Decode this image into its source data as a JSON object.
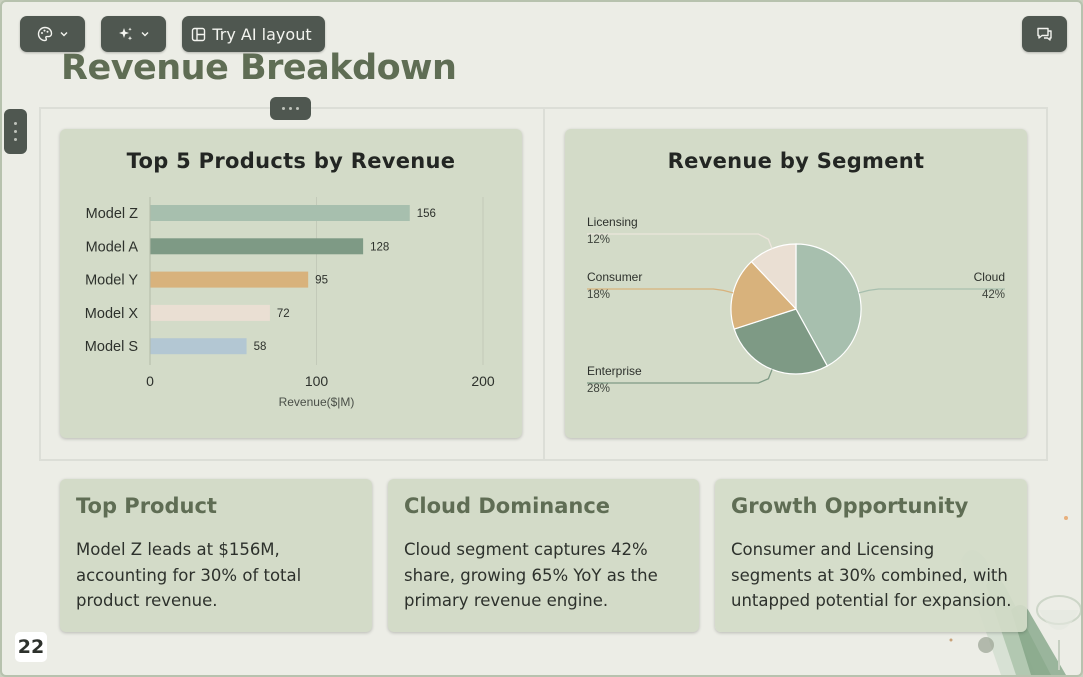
{
  "toolbar": {
    "theme_icon": "palette-icon",
    "ai_icon": "sparkle-icon",
    "ai_layout_icon": "layout-icon",
    "ai_layout_label": "Try AI layout",
    "comment_icon": "comment-icon"
  },
  "slide": {
    "title": "Revenue Breakdown",
    "page_number": "22"
  },
  "bar_chart": {
    "title": "Top 5 Products by Revenue"
  },
  "pie_chart": {
    "title": "Revenue by Segment"
  },
  "chart_data": [
    {
      "type": "bar",
      "orientation": "horizontal",
      "title": "Top 5 Products by Revenue",
      "categories": [
        "Model Z",
        "Model A",
        "Model Y",
        "Model X",
        "Model S"
      ],
      "values": [
        156,
        128,
        95,
        72,
        58
      ],
      "value_labels": [
        "156",
        "128",
        "95",
        "72",
        "58"
      ],
      "colors": [
        "#a7bfae",
        "#7e9a85",
        "#d8b27c",
        "#eadfd3",
        "#b3c7d3"
      ],
      "xlabel": "Revenue($|M)",
      "ylabel": "",
      "xlim": [
        0,
        200
      ],
      "xticks": [
        0,
        100,
        200
      ],
      "grid": "vertical"
    },
    {
      "type": "pie",
      "title": "Revenue by Segment",
      "slices": [
        {
          "label": "Cloud",
          "value": 42,
          "pct_label": "42%",
          "color": "#a7bfae"
        },
        {
          "label": "Enterprise",
          "value": 28,
          "pct_label": "28%",
          "color": "#7e9a85"
        },
        {
          "label": "Consumer",
          "value": 18,
          "pct_label": "18%",
          "color": "#d8b27c"
        },
        {
          "label": "Licensing",
          "value": 12,
          "pct_label": "12%",
          "color": "#eadfd3"
        }
      ]
    }
  ],
  "insights": [
    {
      "title": "Top Product",
      "body": "Model Z leads at $156M, accounting for 30% of total product revenue."
    },
    {
      "title": "Cloud Dominance",
      "body": "Cloud segment captures 42% share, growing 65% YoY as the primary revenue engine."
    },
    {
      "title": "Growth Opportunity",
      "body": "Consumer and Licensing segments at 30% combined, with untapped potential for expansion."
    }
  ]
}
